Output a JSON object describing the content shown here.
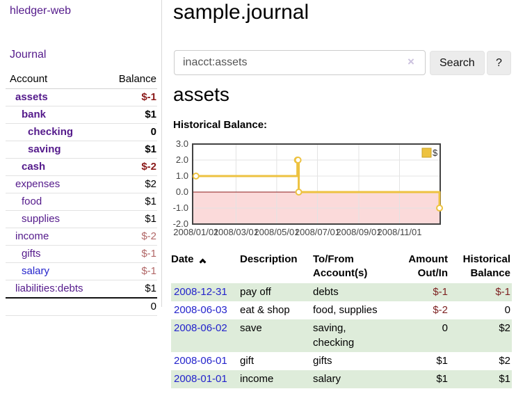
{
  "app": {
    "title": "hledger-web"
  },
  "colors": {
    "link_visited": "#541a8b",
    "link_unvisited": "#2323cc",
    "negative_strong": "#8b1a1a",
    "negative_soft": "#b16767",
    "negative_table": "#7d2121",
    "row_stripe_green": "#deecda",
    "series_gold": "#edc240"
  },
  "sidebar": {
    "journal_link": "Journal",
    "accounts": {
      "header_account": "Account",
      "header_balance": "Balance",
      "rows": [
        {
          "name": "assets",
          "balance": "$-1",
          "indent": 1,
          "emph": true,
          "negative": true
        },
        {
          "name": "bank",
          "balance": "$1",
          "indent": 2,
          "emph": true,
          "negative": false
        },
        {
          "name": "checking",
          "balance": "0",
          "indent": 3,
          "emph": true,
          "negative": false
        },
        {
          "name": "saving",
          "balance": "$1",
          "indent": 3,
          "emph": true,
          "negative": false
        },
        {
          "name": "cash",
          "balance": "$-2",
          "indent": 2,
          "emph": true,
          "negative": true
        },
        {
          "name": "expenses",
          "balance": "$2",
          "indent": 1,
          "emph": false,
          "negative": false
        },
        {
          "name": "food",
          "balance": "$1",
          "indent": 2,
          "emph": false,
          "negative": false
        },
        {
          "name": "supplies",
          "balance": "$1",
          "indent": 2,
          "emph": false,
          "negative": false
        },
        {
          "name": "income",
          "balance": "$-2",
          "indent": 1,
          "emph": false,
          "negative": true
        },
        {
          "name": "gifts",
          "balance": "$-1",
          "indent": 2,
          "emph": false,
          "negative": true
        },
        {
          "name": "salary",
          "balance": "$-1",
          "indent": 2,
          "emph": false,
          "negative": true,
          "unvisited": true
        },
        {
          "name": "liabilities:debts",
          "balance": "$1",
          "indent": 1,
          "emph": false,
          "negative": false
        }
      ],
      "total": "0"
    }
  },
  "main": {
    "title": "sample.journal",
    "search": {
      "value": "inacct:assets",
      "clear_icon": "×",
      "button_label": "Search",
      "help_label": "?"
    },
    "account_heading": "assets",
    "chart_label": "Historical Balance:",
    "register": {
      "headers": {
        "date": "Date",
        "description": "Description",
        "account": "To/From Account(s)",
        "amount": "Amount Out/In",
        "balance": "Historical Balance"
      },
      "sort_icon": "chevron-up",
      "rows": [
        {
          "date": "2008-12-31",
          "description": "pay off",
          "account": "debts",
          "amount": "$-1",
          "balance": "$-1",
          "amount_neg": true,
          "balance_neg": true
        },
        {
          "date": "2008-06-03",
          "description": "eat & shop",
          "account": "food, supplies",
          "amount": "$-2",
          "balance": "0",
          "amount_neg": true,
          "balance_neg": false
        },
        {
          "date": "2008-06-02",
          "description": "save",
          "account": "saving, checking",
          "amount": "0",
          "balance": "$2",
          "amount_neg": false,
          "balance_neg": false
        },
        {
          "date": "2008-06-01",
          "description": "gift",
          "account": "gifts",
          "amount": "$1",
          "balance": "$2",
          "amount_neg": false,
          "balance_neg": false
        },
        {
          "date": "2008-01-01",
          "description": "income",
          "account": "salary",
          "amount": "$1",
          "balance": "$1",
          "amount_neg": false,
          "balance_neg": false
        }
      ]
    }
  },
  "chart_data": {
    "type": "line",
    "title": "Historical Balance:",
    "step": true,
    "series": [
      {
        "name": "$",
        "points": [
          [
            "2008-01-01",
            1
          ],
          [
            "2008-06-01",
            2
          ],
          [
            "2008-06-02",
            2
          ],
          [
            "2008-06-03",
            0
          ],
          [
            "2008-12-31",
            -1
          ]
        ]
      }
    ],
    "ylim": [
      -2,
      3
    ],
    "y_ticks": [
      3,
      2,
      1,
      0,
      -1,
      -2
    ],
    "x_range": [
      "2007-12-27",
      "2009-01-01"
    ],
    "x_ticks": [
      {
        "date": "2008-01-01",
        "label": "2008/01/01"
      },
      {
        "date": "2008-03-01",
        "label": "2008/03/01"
      },
      {
        "date": "2008-05-01",
        "label": "2008/05/01"
      },
      {
        "date": "2008-07-01",
        "label": "2008/07/01"
      },
      {
        "date": "2008-09-01",
        "label": "2008/09/01"
      },
      {
        "date": "2008-11-01",
        "label": "2008/11/01"
      }
    ],
    "legend_position": "top-right",
    "grid": true,
    "colors": {
      "series": "#edc240",
      "marker_fill": "#ffffff",
      "negative_region": "#fbdada",
      "zero_line": "#8b1a1a",
      "gridline": "#e3e3e3",
      "border": "#424242",
      "axis_text": "#444444"
    }
  }
}
